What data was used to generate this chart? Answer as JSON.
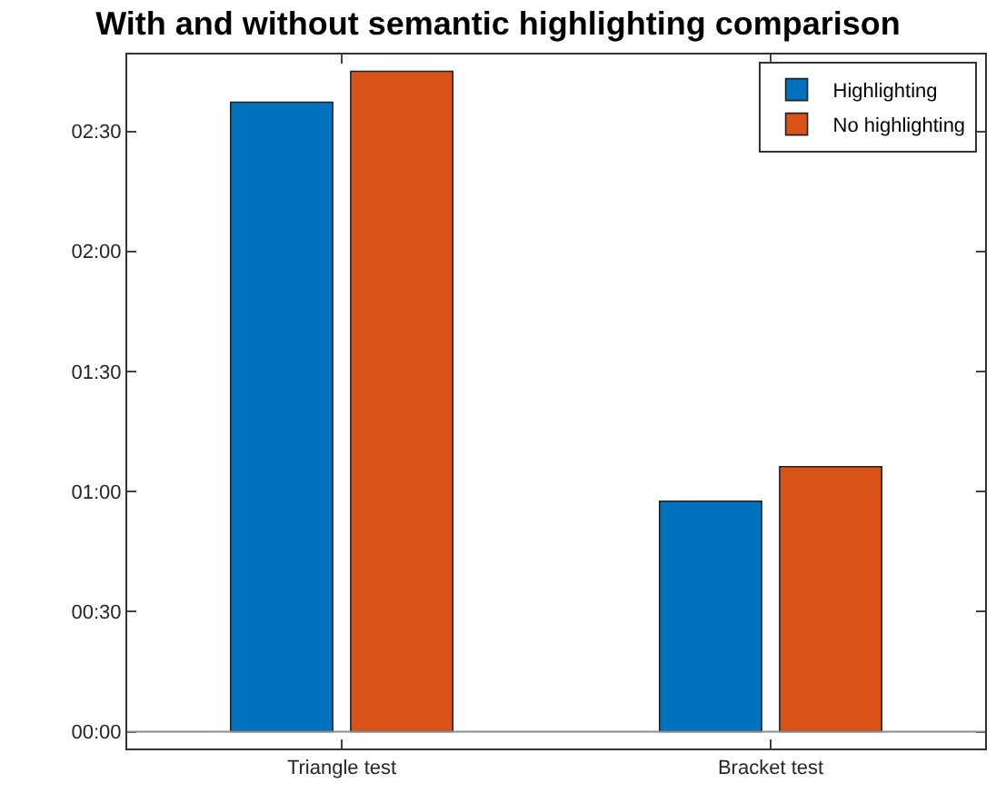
{
  "chart_data": {
    "type": "bar",
    "title": "With and without semantic highlighting comparison",
    "categories": [
      "Triangle test",
      "Bracket test"
    ],
    "series": [
      {
        "name": "Highlighting",
        "color": "#0072bd",
        "values": [
          157.3,
          57.6
        ]
      },
      {
        "name": "No highlighting",
        "color": "#d95319",
        "values": [
          165.0,
          66.2
        ]
      }
    ],
    "ylim": [
      -4.2,
      169.2
    ],
    "yticks": [
      {
        "value": 0,
        "label": "00:00"
      },
      {
        "value": 30,
        "label": "00:30"
      },
      {
        "value": 60,
        "label": "01:00"
      },
      {
        "value": 90,
        "label": "01:30"
      },
      {
        "value": 120,
        "label": "02:00"
      },
      {
        "value": 150,
        "label": "02:30"
      }
    ],
    "ref_lines": [
      {
        "axis": "y",
        "value": 0,
        "color": "#8c8c8c"
      }
    ],
    "legend": "top right"
  }
}
